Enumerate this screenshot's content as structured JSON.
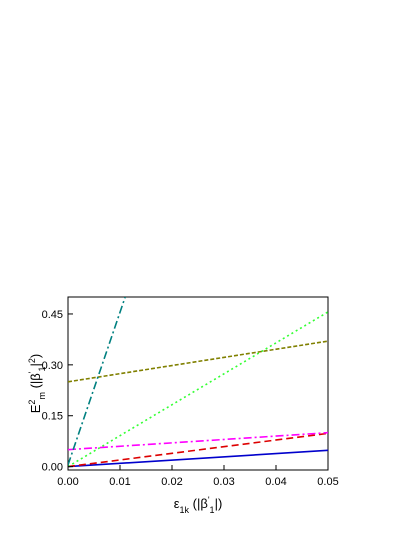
{
  "chart_data": {
    "type": "line",
    "xlabel": [
      {
        "text": "ε"
      },
      {
        "text": "1k",
        "pos": "sub"
      },
      {
        "text": " (|β"
      },
      {
        "text": "'",
        "pos": "sup"
      },
      {
        "text": "1",
        "pos": "sub"
      },
      {
        "text": "|)"
      }
    ],
    "ylabel": [
      {
        "text": "E"
      },
      {
        "text": "2",
        "pos": "sup"
      },
      {
        "text": "m",
        "pos": "sub"
      },
      {
        "text": " (|β"
      },
      {
        "text": "'",
        "pos": "sup"
      },
      {
        "text": "1",
        "pos": "sub"
      },
      {
        "text": "|"
      },
      {
        "text": "2",
        "pos": "sup"
      },
      {
        "text": ")"
      }
    ],
    "xlim": [
      0,
      0.05
    ],
    "ylim": [
      -0.01,
      0.5
    ],
    "xticks": [
      {
        "value": 0,
        "label": "0.00"
      },
      {
        "value": 0.01,
        "label": "0.01"
      },
      {
        "value": 0.02,
        "label": "0.02"
      },
      {
        "value": 0.03,
        "label": "0.03"
      },
      {
        "value": 0.04,
        "label": "0.04"
      },
      {
        "value": 0.05,
        "label": "0.05"
      }
    ],
    "yticks": [
      {
        "value": 0,
        "label": "0.00"
      },
      {
        "value": 0.15,
        "label": "0.15"
      },
      {
        "value": 0.3,
        "label": "0.30"
      },
      {
        "value": 0.45,
        "label": "0.45"
      }
    ],
    "series": [
      {
        "color": "#0000cc",
        "style": "solid",
        "x": [
          0,
          0.05
        ],
        "values": [
          0,
          0.048
        ]
      },
      {
        "color": "#dd0000",
        "style": "dash",
        "x": [
          0,
          0.05
        ],
        "values": [
          0,
          0.098
        ]
      },
      {
        "color": "#ff00ff",
        "style": "dashdot",
        "x": [
          0,
          0.05
        ],
        "values": [
          0.05,
          0.1
        ]
      },
      {
        "color": "#33ff33",
        "style": "dot",
        "x": [
          0,
          0.05
        ],
        "values": [
          0,
          0.456
        ]
      },
      {
        "color": "#808000",
        "style": "shortdash",
        "x": [
          0,
          0.05
        ],
        "values": [
          0.25,
          0.37
        ]
      },
      {
        "color": "#008080",
        "style": "dashdot",
        "x": [
          0,
          0.011
        ],
        "values": [
          0.005,
          0.5
        ]
      }
    ]
  }
}
